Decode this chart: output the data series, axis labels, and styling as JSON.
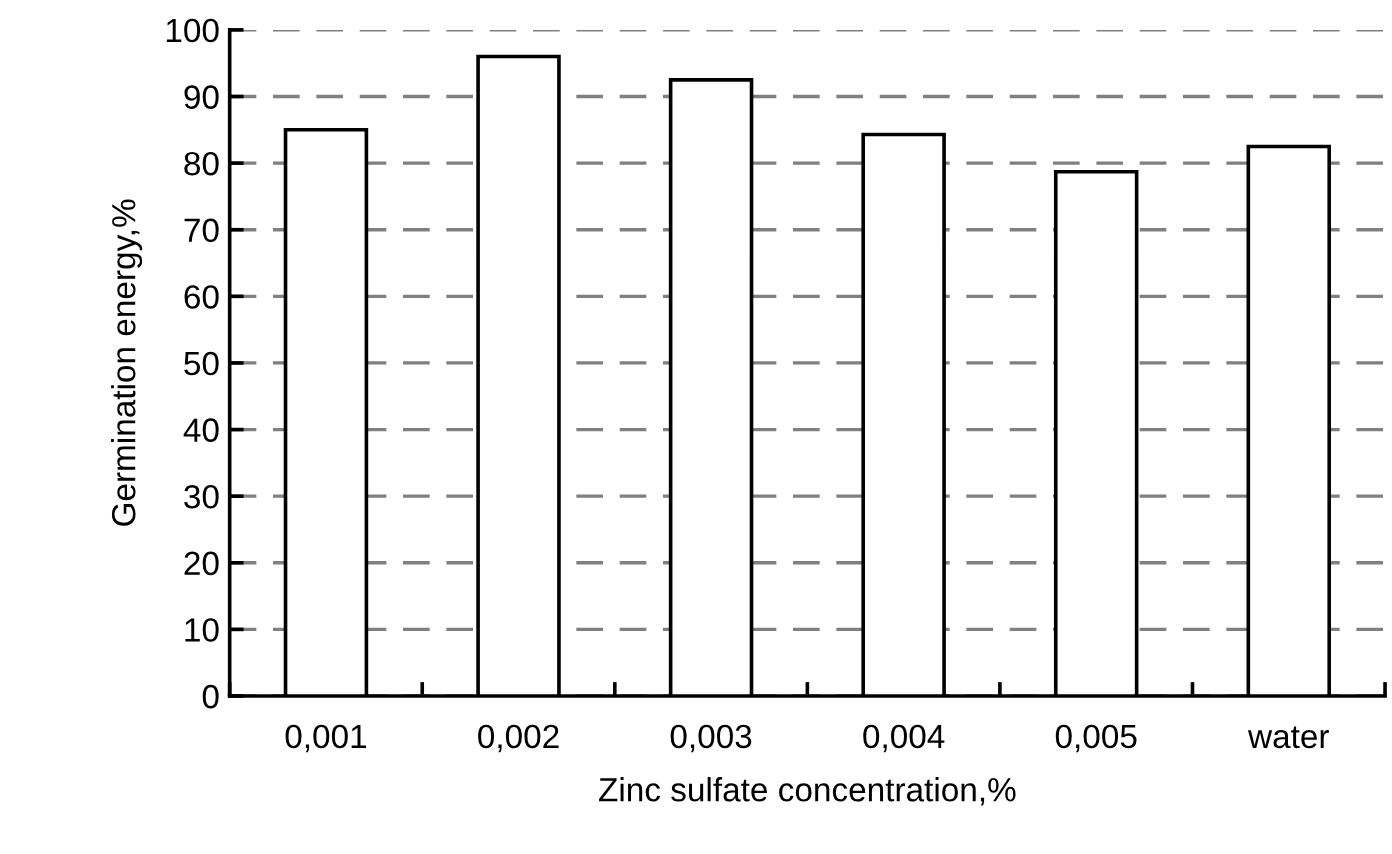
{
  "chart_data": {
    "type": "bar",
    "xlabel": "Zinc sulfate concentration,%",
    "ylabel": "Germination energy,%",
    "categories": [
      "0,001",
      "0,002",
      "0,003",
      "0,004",
      "0,005",
      "water"
    ],
    "values": [
      85,
      96,
      92.5,
      84.3,
      78.7,
      82.5
    ],
    "color": "#ffffff",
    "ylim": [
      0,
      100
    ],
    "yticks": [
      0,
      10,
      20,
      30,
      40,
      50,
      60,
      70,
      80,
      90,
      100
    ],
    "grid": "y",
    "line_style": "dashed"
  }
}
